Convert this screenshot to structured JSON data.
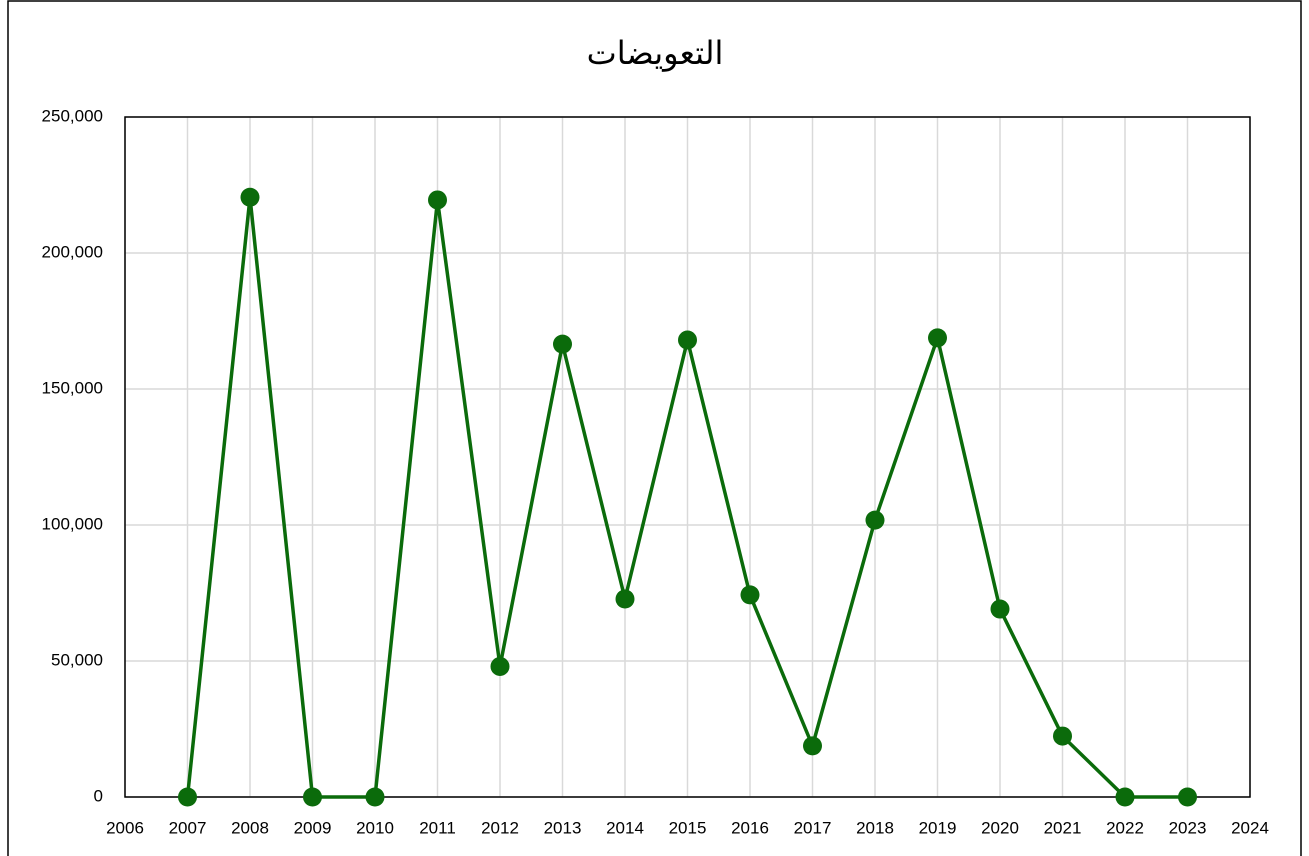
{
  "chart_data": {
    "type": "line",
    "title": "التعويضات",
    "x": [
      2007,
      2008,
      2009,
      2010,
      2011,
      2012,
      2013,
      2014,
      2015,
      2016,
      2017,
      2018,
      2019,
      2020,
      2021,
      2022,
      2023
    ],
    "series": [
      {
        "name": "التعويضات",
        "color": "#0b6b0b",
        "values": [
          0,
          220500,
          0,
          0,
          219500,
          48000,
          166500,
          72800,
          168000,
          74300,
          18800,
          101800,
          168800,
          69100,
          22400,
          0,
          0
        ]
      }
    ],
    "xlim": [
      2006,
      2024
    ],
    "xticks": [
      2006,
      2007,
      2008,
      2009,
      2010,
      2011,
      2012,
      2013,
      2014,
      2015,
      2016,
      2017,
      2018,
      2019,
      2020,
      2021,
      2022,
      2023,
      2024
    ],
    "ylim": [
      0,
      250000
    ],
    "yticks": [
      0,
      {
        "value": 50000,
        "label": "50,000"
      },
      {
        "value": 100000,
        "label": "100,000"
      },
      {
        "value": 150000,
        "label": "150,000"
      },
      {
        "value": 200000,
        "label": "200,000"
      },
      {
        "value": 250000,
        "label": "250,000"
      }
    ],
    "grid": true
  }
}
